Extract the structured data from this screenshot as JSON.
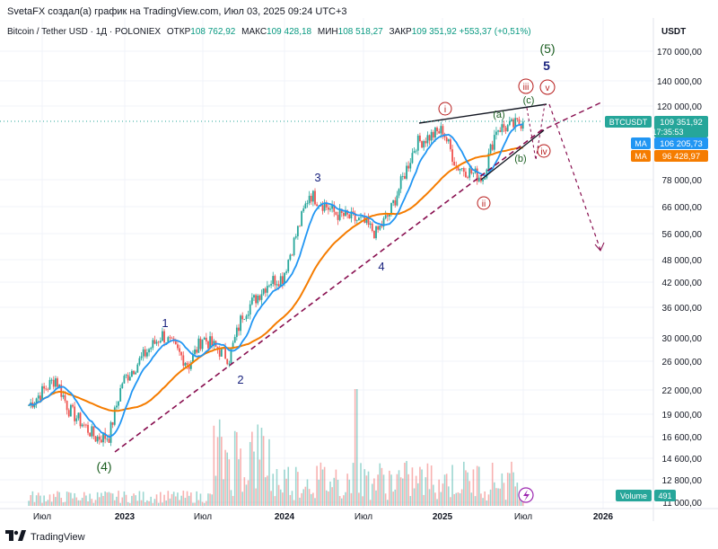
{
  "header": {
    "attribution": "SvetaFX создал(а) график на TradingView.com, Июл 03, 2025 09:24 UTC+3"
  },
  "legend": {
    "symbol": "Bitcoin / Tether USD · 1Д · POLONIEX",
    "open_label": "ОТКР",
    "open_value": "108 762,92",
    "high_label": "МАКС",
    "high_value": "109 428,18",
    "low_label": "МИН",
    "low_value": "108 518,27",
    "close_label": "ЗАКР",
    "close_value": "109 351,92",
    "change_value": "+553,37 (+0,51%)"
  },
  "price_axis": {
    "currency": "USDT",
    "ticks": [
      "170 000,00",
      "140 000,00",
      "120 000,00",
      "78 000,00",
      "66 000,00",
      "56 000,00",
      "48 000,00",
      "42 000,00",
      "36 000,00",
      "30 000,00",
      "26 000,00",
      "22 000,00",
      "19 000,00",
      "16 600,00",
      "14 600,00",
      "12 800,00",
      "11 000,00"
    ]
  },
  "time_axis": {
    "ticks": [
      "Июл",
      "2023",
      "Июл",
      "2024",
      "Июл",
      "2025",
      "Июл",
      "2026"
    ]
  },
  "badges": {
    "symbol_label": "BTCUSDT",
    "price": "109 351,92",
    "countdown": "17:35:53",
    "ma_blue_label": "MA",
    "ma_blue_value": "106 205,73",
    "ma_orange_label": "MA",
    "ma_orange_value": "96 428,97",
    "volume_label": "Volume",
    "volume_value": "491"
  },
  "colors": {
    "up": "#26a69a",
    "down": "#ef5350",
    "ma_fast": "#2196f3",
    "ma_slow": "#f57c00",
    "channel": "#880e4f",
    "wave_minor": "#1a237e",
    "wave_major": "#1b5e20",
    "wave_sub": "#b71c1c"
  },
  "wave_labels": {
    "w1": "1",
    "w2": "2",
    "w3": "3",
    "w4": "4",
    "w5": "5",
    "big4": "(4)",
    "big5": "(5)",
    "i": "i",
    "ii": "ii",
    "iii": "iii",
    "iv": "iv",
    "v": "v",
    "a": "(a)",
    "b": "(b)",
    "c": "(c)"
  },
  "chart_data": {
    "type": "candlestick",
    "symbol": "BTCUSDT",
    "timeframe": "1D",
    "scale": "log",
    "ylim": [
      11000,
      180000
    ],
    "x_range": [
      "2022-06",
      "2026-03"
    ],
    "close_path": [
      {
        "date": "2022-06",
        "close": 20000
      },
      {
        "date": "2022-08",
        "close": 23500
      },
      {
        "date": "2022-09",
        "close": 19500
      },
      {
        "date": "2022-11",
        "close": 16500
      },
      {
        "date": "2022-12",
        "close": 16600
      },
      {
        "date": "2023-01",
        "close": 23000
      },
      {
        "date": "2023-03",
        "close": 28000
      },
      {
        "date": "2023-04",
        "close": 30500
      },
      {
        "date": "2023-06",
        "close": 25500
      },
      {
        "date": "2023-07",
        "close": 30000
      },
      {
        "date": "2023-09",
        "close": 26500
      },
      {
        "date": "2023-10",
        "close": 34500
      },
      {
        "date": "2023-12",
        "close": 42000
      },
      {
        "date": "2024-01",
        "close": 43000
      },
      {
        "date": "2024-03",
        "close": 71000
      },
      {
        "date": "2024-05",
        "close": 63000
      },
      {
        "date": "2024-07",
        "close": 60000
      },
      {
        "date": "2024-08",
        "close": 56000
      },
      {
        "date": "2024-09",
        "close": 63000
      },
      {
        "date": "2024-11",
        "close": 96000
      },
      {
        "date": "2024-12",
        "close": 100000
      },
      {
        "date": "2025-01",
        "close": 104000
      },
      {
        "date": "2025-02",
        "close": 84000
      },
      {
        "date": "2025-04",
        "close": 78000
      },
      {
        "date": "2025-05",
        "close": 105000
      },
      {
        "date": "2025-06",
        "close": 106000
      },
      {
        "date": "2025-07",
        "close": 109351.92
      }
    ],
    "ma_fast_last": 106205.73,
    "ma_slow_last": 96428.97,
    "volume_last": 491
  }
}
